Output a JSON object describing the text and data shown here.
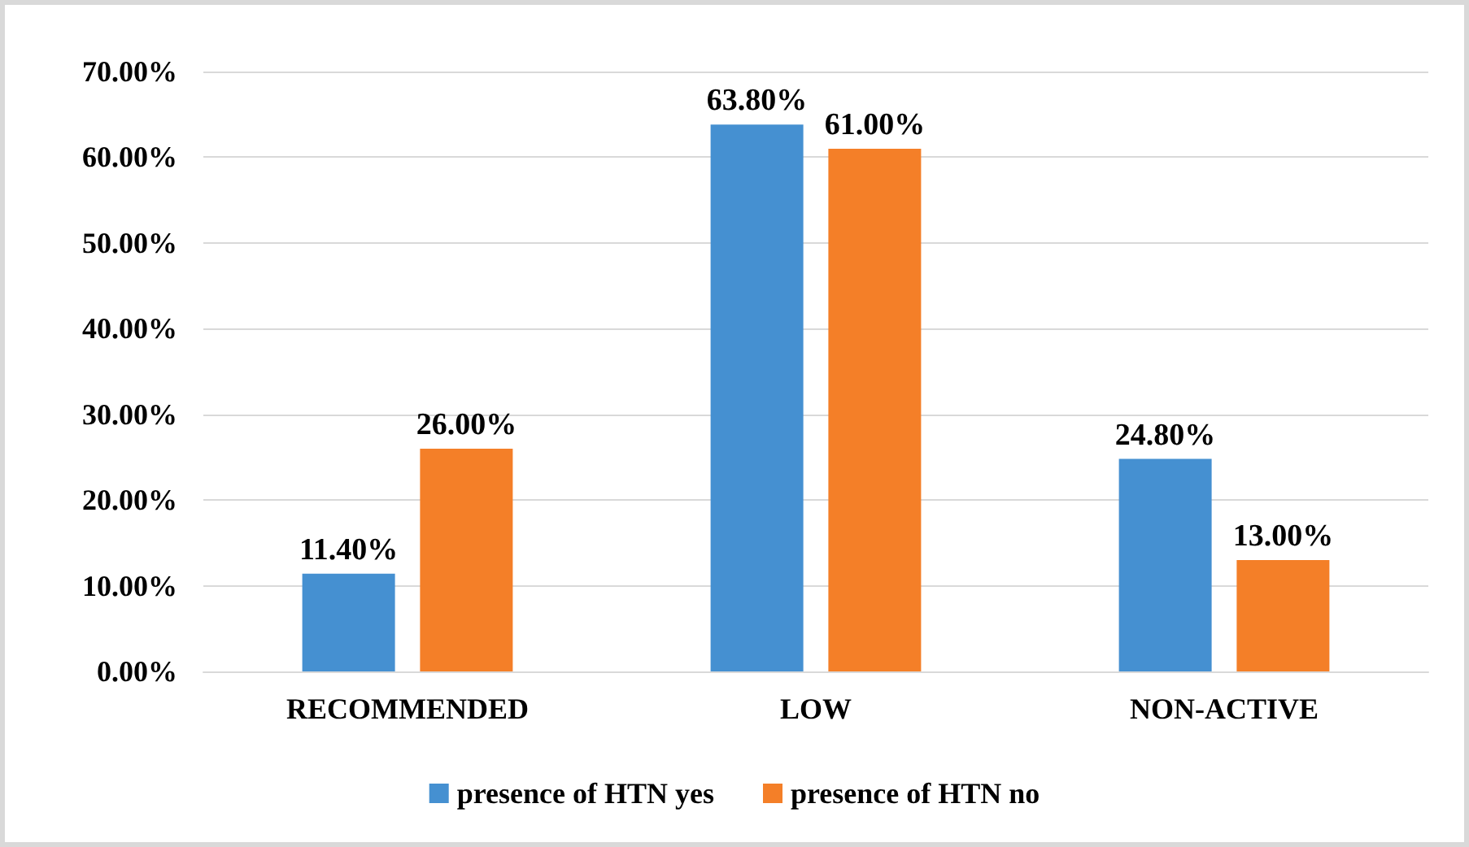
{
  "chart_data": {
    "type": "bar",
    "categories": [
      "RECOMMENDED",
      "LOW",
      "NON-ACTIVE"
    ],
    "series": [
      {
        "name": "presence of HTN yes",
        "color": "#4590d1",
        "values": [
          11.4,
          63.8,
          24.8
        ],
        "value_labels": [
          "11.40%",
          "63.80%",
          "24.80%"
        ]
      },
      {
        "name": "presence of HTN no",
        "color": "#f47f28",
        "values": [
          26.0,
          61.0,
          13.0
        ],
        "value_labels": [
          "26.00%",
          "61.00%",
          "13.00%"
        ]
      }
    ],
    "ylim": [
      0,
      70
    ],
    "yticks": [
      {
        "value": 0,
        "label": "0.00%"
      },
      {
        "value": 10,
        "label": "10.00%"
      },
      {
        "value": 20,
        "label": "20.00%"
      },
      {
        "value": 30,
        "label": "30.00%"
      },
      {
        "value": 40,
        "label": "40.00%"
      },
      {
        "value": 50,
        "label": "50.00%"
      },
      {
        "value": 60,
        "label": "60.00%"
      },
      {
        "value": 70,
        "label": "70.00%"
      }
    ],
    "grid": "y",
    "legend": "bottom"
  }
}
